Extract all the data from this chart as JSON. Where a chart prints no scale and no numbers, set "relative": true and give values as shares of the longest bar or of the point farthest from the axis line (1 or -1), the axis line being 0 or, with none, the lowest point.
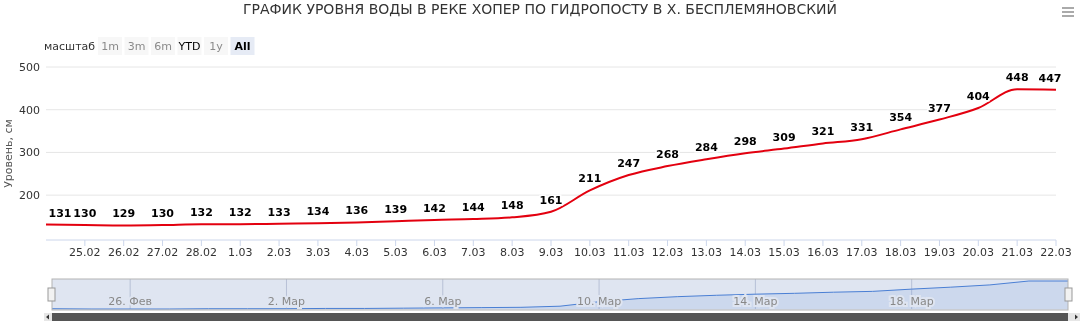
{
  "chart_data": [
    {
      "type": "line",
      "title": "ГРАФИК УРОВНЯ ВОДЫ В РЕКЕ ХОПЕР ПО ГИДРОПОСТУ В Х. БЕСПЛЕМЯНОВСКИЙ",
      "ylabel": "Уровень, см",
      "annotations": [
        "масштаб",
        "1m",
        "3m",
        "6m",
        "YTD",
        "1y",
        "All"
      ],
      "x": [
        "--02-24",
        "--02-25",
        "--02-26",
        "--02-27",
        "--02-28",
        "--03-01",
        "--03-02",
        "--03-03",
        "--03-04",
        "--03-05",
        "--03-06",
        "--03-07",
        "--03-08",
        "--03-09",
        "--03-10",
        "--03-11",
        "--03-12",
        "--03-13",
        "--03-14",
        "--03-15",
        "--03-16",
        "--03-17",
        "--03-18",
        "--03-19",
        "--03-20",
        "--03-21",
        "--03-22"
      ],
      "series": [
        {
          "color": "#e3000f",
          "values": [
            131,
            130,
            129,
            130,
            132,
            132,
            133,
            134,
            136,
            139,
            142,
            144,
            148,
            161,
            211,
            247,
            268,
            284,
            298,
            309,
            321,
            331,
            354,
            377,
            404,
            448,
            447
          ]
        }
      ],
      "xlim": [
        "--02-24",
        "--03-22"
      ],
      "xticks": [
        {
          "value": "--02-25",
          "label": "25.02"
        },
        {
          "value": "--02-26",
          "label": "26.02"
        },
        {
          "value": "--02-27",
          "label": "27.02"
        },
        {
          "value": "--02-28",
          "label": "28.02"
        },
        {
          "value": "--03-01",
          "label": "1.03"
        },
        {
          "value": "--03-02",
          "label": "2.03"
        },
        {
          "value": "--03-03",
          "label": "3.03"
        },
        {
          "value": "--03-04",
          "label": "4.03"
        },
        {
          "value": "--03-05",
          "label": "5.03"
        },
        {
          "value": "--03-06",
          "label": "6.03"
        },
        {
          "value": "--03-07",
          "label": "7.03"
        },
        {
          "value": "--03-08",
          "label": "8.03"
        },
        {
          "value": "--03-09",
          "label": "9.03"
        },
        {
          "value": "--03-10",
          "label": "10.03"
        },
        {
          "value": "--03-11",
          "label": "11.03"
        },
        {
          "value": "--03-12",
          "label": "12.03"
        },
        {
          "value": "--03-13",
          "label": "13.03"
        },
        {
          "value": "--03-14",
          "label": "14.03"
        },
        {
          "value": "--03-15",
          "label": "15.03"
        },
        {
          "value": "--03-16",
          "label": "16.03"
        },
        {
          "value": "--03-17",
          "label": "17.03"
        },
        {
          "value": "--03-18",
          "label": "18.03"
        },
        {
          "value": "--03-19",
          "label": "19.03"
        },
        {
          "value": "--03-20",
          "label": "20.03"
        },
        {
          "value": "--03-21",
          "label": "21.03"
        },
        {
          "value": "--03-22",
          "label": "22.03"
        }
      ],
      "ylim": [
        95,
        500
      ],
      "yticks": [
        200,
        300,
        400,
        500
      ],
      "grid": "y",
      "data_labels": true,
      "marker": "none"
    },
    {
      "type": "area",
      "relative": true,
      "tick_labels": "x",
      "grid": "x",
      "x": [
        "--02-24",
        "--02-25",
        "--02-26",
        "--02-27",
        "--02-28",
        "--03-01",
        "--03-02",
        "--03-03",
        "--03-04",
        "--03-05",
        "--03-06",
        "--03-07",
        "--03-08",
        "--03-09",
        "--03-10",
        "--03-11",
        "--03-12",
        "--03-13",
        "--03-14",
        "--03-15",
        "--03-16",
        "--03-17",
        "--03-18",
        "--03-19",
        "--03-20",
        "--03-21",
        "--03-22"
      ],
      "series": [
        {
          "color": "#4a7fd4",
          "values": [
            0.01,
            0.0,
            0.0,
            0.0,
            0.01,
            0.01,
            0.01,
            0.02,
            0.02,
            0.03,
            0.04,
            0.05,
            0.06,
            0.1,
            0.26,
            0.37,
            0.44,
            0.49,
            0.53,
            0.56,
            0.6,
            0.63,
            0.71,
            0.78,
            0.86,
            1,
            1
          ]
        }
      ],
      "xlim": [
        "--02-24",
        "--03-22"
      ],
      "xticks": [
        {
          "value": "--02-26",
          "label": "26. Фев"
        },
        {
          "value": "--03-02",
          "label": "2. Мар"
        },
        {
          "value": "--03-06",
          "label": "6. Мар"
        },
        {
          "value": "--03-10",
          "label": "10. Мар"
        },
        {
          "value": "--03-14",
          "label": "14. Мар"
        },
        {
          "value": "--03-18",
          "label": "18. Мар"
        }
      ]
    }
  ]
}
